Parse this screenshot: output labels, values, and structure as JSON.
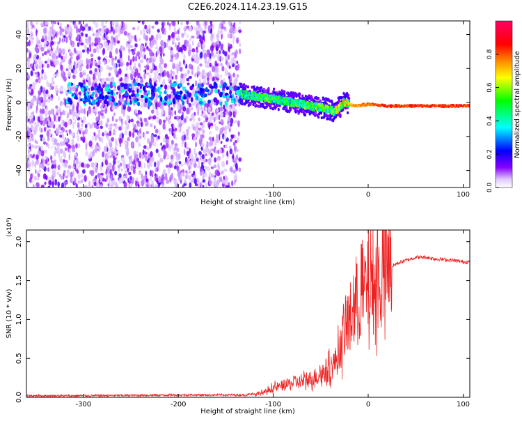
{
  "figure_title": "C2E6.2024.114.23.19.G15",
  "chart_data": [
    {
      "type": "heatmap",
      "xlabel": "Height of straight line (km)",
      "ylabel": "Frequency (Hz)",
      "xlim": [
        -360,
        107
      ],
      "ylim": [
        -50,
        48
      ],
      "x_ticks": [
        -300,
        -200,
        -100,
        0,
        100
      ],
      "y_ticks": [
        -40,
        -20,
        0,
        20,
        40
      ],
      "colorbar": {
        "label": "Normalized spectral amplitude",
        "range": [
          0.0,
          1.0
        ],
        "ticks": [
          "0.0",
          "0.2",
          "0.4",
          "0.6",
          "0.8"
        ],
        "colors": [
          "#ffffff",
          "#8800ff",
          "#0000ff",
          "#00ffff",
          "#00ff00",
          "#ffff00",
          "#ff8800",
          "#ff0000",
          "#ff0066"
        ]
      },
      "signal_ridge": [
        {
          "height_km": -135,
          "freq_hz": 5,
          "amplitude": 0.5
        },
        {
          "height_km": -110,
          "freq_hz": 3,
          "amplitude": 0.55
        },
        {
          "height_km": -90,
          "freq_hz": 1,
          "amplitude": 0.5
        },
        {
          "height_km": -70,
          "freq_hz": -1,
          "amplitude": 0.55
        },
        {
          "height_km": -50,
          "freq_hz": -3,
          "amplitude": 0.55
        },
        {
          "height_km": -35,
          "freq_hz": -5,
          "amplitude": 0.6
        },
        {
          "height_km": -25,
          "freq_hz": 0,
          "amplitude": 0.7
        },
        {
          "height_km": -15,
          "freq_hz": -2,
          "amplitude": 0.75
        },
        {
          "height_km": 0,
          "freq_hz": -1,
          "amplitude": 0.8
        },
        {
          "height_km": 20,
          "freq_hz": -2,
          "amplitude": 0.85
        },
        {
          "height_km": 60,
          "freq_hz": -2,
          "amplitude": 0.85
        },
        {
          "height_km": 105,
          "freq_hz": -2,
          "amplitude": 0.85
        }
      ],
      "noise_region_km": [
        -360,
        -135
      ]
    },
    {
      "type": "line",
      "xlabel": "Height of straight line (km)",
      "ylabel": "SNR (10 * v/v)",
      "y_multiplier": "(x10⁴)",
      "xlim": [
        -360,
        107
      ],
      "ylim": [
        0,
        2.15
      ],
      "x_ticks": [
        -300,
        -200,
        -100,
        0,
        100
      ],
      "y_ticks": [
        "0.0",
        "0.5",
        "1.0",
        "1.5",
        "2.0"
      ],
      "line_color": "#ee2222",
      "series": [
        {
          "x": [
            -360,
            -300,
            -200,
            -130,
            -110,
            -100,
            -90,
            -80,
            -70,
            -60,
            -50,
            -40,
            -35,
            -30,
            -25,
            -20,
            -15,
            -10,
            -5,
            0,
            5,
            10,
            15,
            20,
            25,
            30,
            40,
            50,
            60,
            70,
            80,
            90,
            100,
            107
          ],
          "values": [
            0.02,
            0.02,
            0.03,
            0.03,
            0.06,
            0.12,
            0.15,
            0.18,
            0.2,
            0.24,
            0.3,
            0.38,
            0.45,
            0.6,
            0.85,
            1.0,
            1.15,
            1.25,
            1.35,
            1.4,
            1.45,
            1.5,
            1.55,
            1.6,
            1.68,
            1.72,
            1.76,
            1.8,
            1.8,
            1.78,
            1.77,
            1.76,
            1.74,
            1.74
          ]
        }
      ]
    }
  ]
}
